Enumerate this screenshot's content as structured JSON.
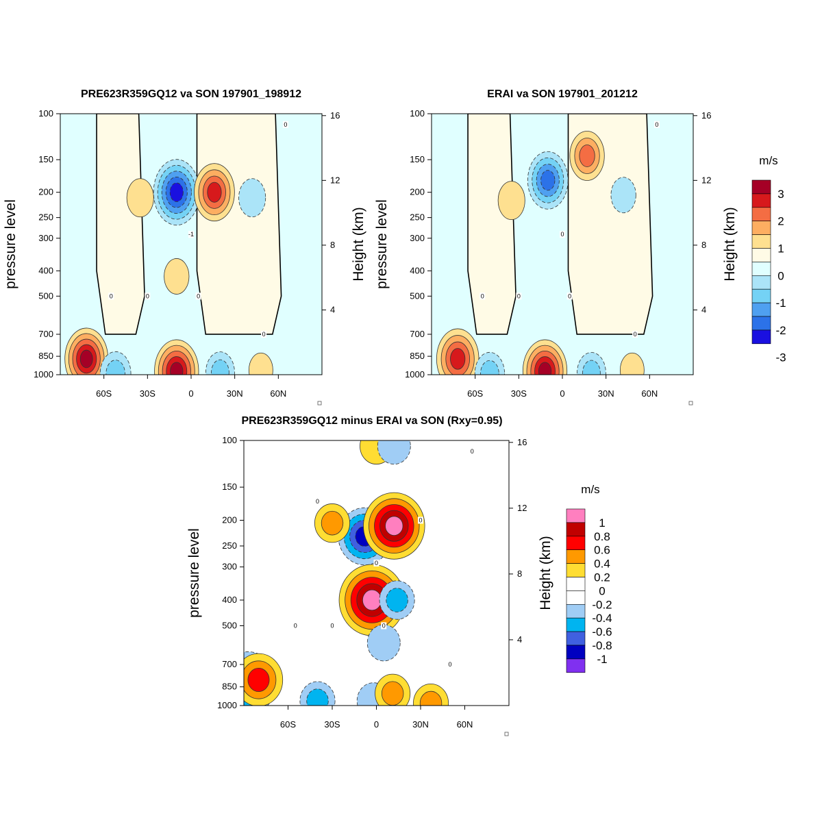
{
  "chart_data": [
    {
      "type": "contour",
      "title": "PRE623R359GQ12 va SON 197901_198912",
      "ylabel": "pressure level",
      "y2label": "Height (km)",
      "xticks": [
        "60S",
        "30S",
        "0",
        "30N",
        "60N"
      ],
      "xtick_values": [
        -60,
        -30,
        0,
        30,
        60
      ],
      "yticks": [
        "100",
        "150",
        "200",
        "250",
        "300",
        "400",
        "500",
        "700",
        "850",
        "1000"
      ],
      "ytick_values": [
        100,
        150,
        200,
        250,
        300,
        400,
        500,
        700,
        850,
        1000
      ],
      "y2ticks": [
        "16",
        "12",
        "8",
        "4"
      ],
      "y2tick_values": [
        16,
        12,
        8,
        4
      ],
      "xlim": [
        -90,
        90
      ],
      "ylim": [
        1000,
        100
      ],
      "yscale": "log",
      "contour_labels": [
        "0",
        "0",
        "0",
        "0",
        "0",
        "-1"
      ],
      "features": [
        {
          "kind": "max",
          "lat": -35,
          "p": 210,
          "value": 0.8
        },
        {
          "kind": "min",
          "lat": -10,
          "p": 200,
          "value": -2.8
        },
        {
          "kind": "max",
          "lat": 16,
          "p": 200,
          "value": 2.2
        },
        {
          "kind": "min",
          "lat": 42,
          "p": 210,
          "value": -0.8
        },
        {
          "kind": "max",
          "lat": -10,
          "p": 420,
          "value": 0.6
        },
        {
          "kind": "max",
          "lat": -72,
          "p": 870,
          "value": 2.5
        },
        {
          "kind": "min",
          "lat": -52,
          "p": 990,
          "value": -1.2
        },
        {
          "kind": "max",
          "lat": -10,
          "p": 970,
          "value": 2.6
        },
        {
          "kind": "min",
          "lat": 20,
          "p": 980,
          "value": -1.0
        },
        {
          "kind": "max",
          "lat": 48,
          "p": 960,
          "value": 0.5
        }
      ]
    },
    {
      "type": "contour",
      "title": "ERAI va SON 197901_201212",
      "ylabel": "pressure level",
      "y2label": "Height (km)",
      "xticks": [
        "60S",
        "30S",
        "0",
        "30N",
        "60N"
      ],
      "xtick_values": [
        -60,
        -30,
        0,
        30,
        60
      ],
      "yticks": [
        "100",
        "150",
        "200",
        "250",
        "300",
        "400",
        "500",
        "700",
        "850",
        "1000"
      ],
      "ytick_values": [
        100,
        150,
        200,
        250,
        300,
        400,
        500,
        700,
        850,
        1000
      ],
      "y2ticks": [
        "16",
        "12",
        "8",
        "4"
      ],
      "y2tick_values": [
        16,
        12,
        8,
        4
      ],
      "xlim": [
        -90,
        90
      ],
      "ylim": [
        1000,
        100
      ],
      "yscale": "log",
      "contour_labels": [
        "0",
        "0",
        "0",
        "0",
        "0",
        "0"
      ],
      "features": [
        {
          "kind": "max",
          "lat": -35,
          "p": 215,
          "value": 0.8
        },
        {
          "kind": "min",
          "lat": -10,
          "p": 180,
          "value": -2.2
        },
        {
          "kind": "max",
          "lat": 17,
          "p": 145,
          "value": 1.6
        },
        {
          "kind": "min",
          "lat": 42,
          "p": 205,
          "value": -0.6
        },
        {
          "kind": "max",
          "lat": -72,
          "p": 870,
          "value": 2.4
        },
        {
          "kind": "min",
          "lat": -50,
          "p": 990,
          "value": -1.1
        },
        {
          "kind": "max",
          "lat": -12,
          "p": 970,
          "value": 2.6
        },
        {
          "kind": "min",
          "lat": 20,
          "p": 985,
          "value": -1.0
        },
        {
          "kind": "max",
          "lat": 48,
          "p": 960,
          "value": 0.5
        }
      ]
    },
    {
      "type": "contour",
      "title": "PRE623R359GQ12 minus ERAI va SON (Rxy=0.95)",
      "ylabel": "pressure level",
      "y2label": "Height (km)",
      "xticks": [
        "60S",
        "30S",
        "0",
        "30N",
        "60N"
      ],
      "xtick_values": [
        -60,
        -30,
        0,
        30,
        60
      ],
      "yticks": [
        "100",
        "150",
        "200",
        "250",
        "300",
        "400",
        "500",
        "700",
        "850",
        "1000"
      ],
      "ytick_values": [
        100,
        150,
        200,
        250,
        300,
        400,
        500,
        700,
        850,
        1000
      ],
      "y2ticks": [
        "16",
        "12",
        "8",
        "4"
      ],
      "y2tick_values": [
        16,
        12,
        8,
        4
      ],
      "xlim": [
        -90,
        90
      ],
      "ylim": [
        1000,
        100
      ],
      "yscale": "log",
      "contour_labels": [
        "0",
        "0",
        "0",
        "0",
        "0",
        "0",
        "0",
        "0"
      ],
      "features": [
        {
          "kind": "min",
          "lat": -8,
          "p": 230,
          "value": -0.7
        },
        {
          "kind": "max",
          "lat": 12,
          "p": 210,
          "value": 0.9
        },
        {
          "kind": "max",
          "lat": -3,
          "p": 400,
          "value": 1.0
        },
        {
          "kind": "min",
          "lat": 14,
          "p": 400,
          "value": -0.3
        },
        {
          "kind": "max",
          "lat": -30,
          "p": 205,
          "value": 0.3
        },
        {
          "kind": "max",
          "lat": 0,
          "p": 105,
          "value": 0.25
        },
        {
          "kind": "min",
          "lat": 12,
          "p": 105,
          "value": -0.25
        },
        {
          "kind": "min",
          "lat": 5,
          "p": 580,
          "value": -0.25
        },
        {
          "kind": "min",
          "lat": -87,
          "p": 820,
          "value": -0.8
        },
        {
          "kind": "max",
          "lat": -80,
          "p": 800,
          "value": 0.6
        },
        {
          "kind": "min",
          "lat": -40,
          "p": 960,
          "value": -0.3
        },
        {
          "kind": "min",
          "lat": -2,
          "p": 960,
          "value": -0.25
        },
        {
          "kind": "max",
          "lat": 11,
          "p": 900,
          "value": 0.3
        },
        {
          "kind": "max",
          "lat": 37,
          "p": 980,
          "value": 0.3
        }
      ]
    }
  ],
  "colorbars": [
    {
      "unit": "m/s",
      "labels": [
        "3",
        "2",
        "1",
        "0",
        "-1",
        "-2",
        "-3"
      ],
      "colors": [
        "#a50026",
        "#d7191c",
        "#f46d43",
        "#fdae61",
        "#fee090",
        "#fffbe6",
        "#e0ffff",
        "#abe4f8",
        "#74d2f5",
        "#4fa0f0",
        "#2c72e8",
        "#1a10e0"
      ]
    },
    {
      "unit": "m/s",
      "labels": [
        "1",
        "0.8",
        "0.6",
        "0.4",
        "0.2",
        "0",
        "-0.2",
        "-0.4",
        "-0.6",
        "-0.8",
        "-1"
      ],
      "colors": [
        "#ff7fbf",
        "#c00000",
        "#ff0000",
        "#ff9900",
        "#ffdd33",
        "#ffffff",
        "#ffffff",
        "#a0cdf5",
        "#00b4f0",
        "#4060e0",
        "#0000c0",
        "#8030f0"
      ]
    }
  ]
}
